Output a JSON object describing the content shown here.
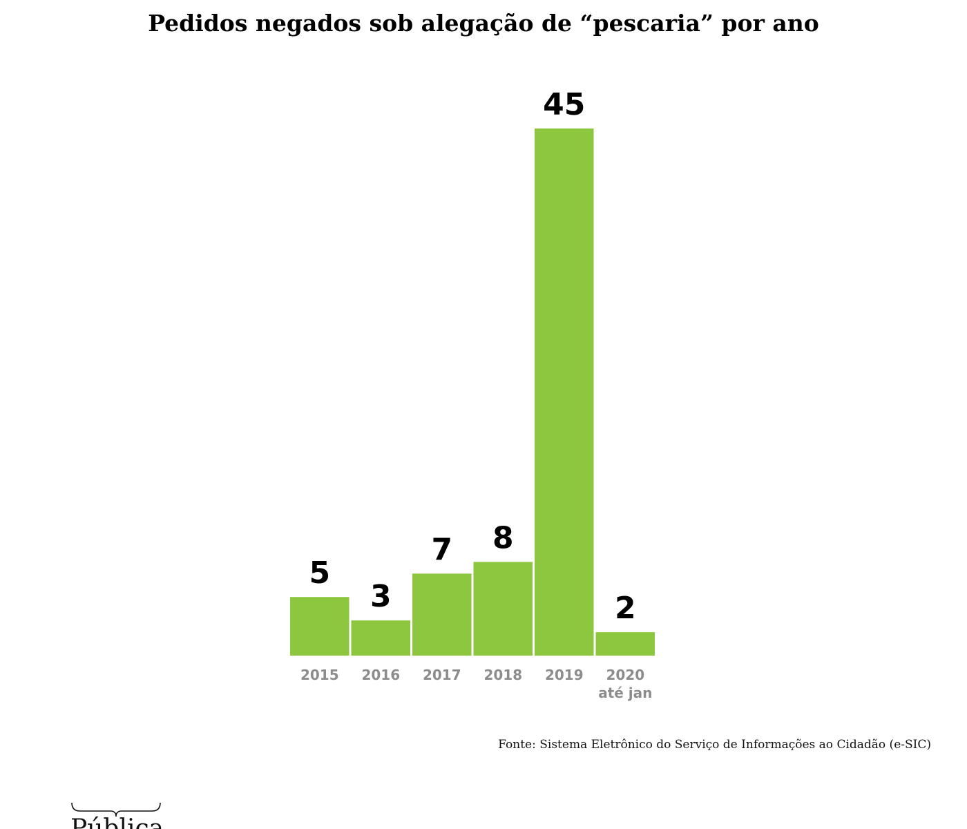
{
  "chart_data": {
    "type": "bar",
    "title": "Pedidos negados sob alegação de “pescaria” por ano",
    "categories": [
      [
        "2015"
      ],
      [
        "2016"
      ],
      [
        "2017"
      ],
      [
        "2018"
      ],
      [
        "2019"
      ],
      [
        "2020",
        "até jan"
      ]
    ],
    "values": [
      5,
      3,
      7,
      8,
      45,
      2
    ],
    "data_labels": [
      "5",
      "3",
      "7",
      "8",
      "45",
      "2"
    ],
    "xlabel": "",
    "ylabel": "",
    "ylim": [
      0,
      45
    ],
    "grid": false,
    "legend": "none",
    "bar_color": "#8dc63f",
    "value_label_color": "#000000",
    "tick_label_color": "#8c8c8c"
  },
  "source": "Fonte: Sistema Eletrônico do Serviço de Informações ao Cidadão (e-SIC)",
  "logo": {
    "text": "Pública"
  }
}
